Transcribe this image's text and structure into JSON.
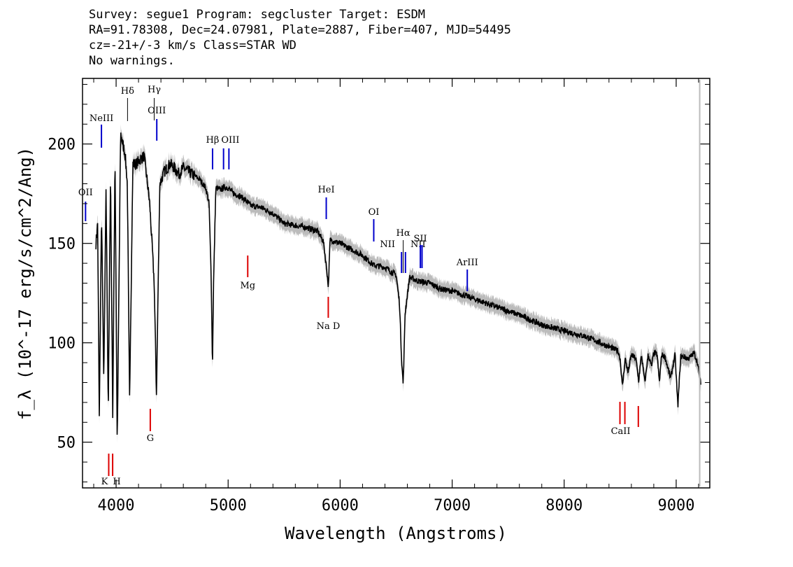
{
  "header": {
    "line1": "Survey: segue1 Program: segcluster Target: ESDM",
    "line2": "RA=91.78308, Dec=24.07981, Plate=2887, Fiber=407, MJD=54495",
    "line3": "cz=-21+/-3 km/s Class=STAR WD",
    "line4": "No warnings."
  },
  "chart_data": {
    "type": "line",
    "xlabel": "Wavelength (Angstroms)",
    "ylabel": "f_λ (10^-17 erg/s/cm^2/Ang)",
    "xlim": [
      3700,
      9300
    ],
    "ylim": [
      27,
      233
    ],
    "xticks": [
      4000,
      5000,
      6000,
      7000,
      8000,
      9000
    ],
    "yticks": [
      50,
      100,
      150,
      200
    ],
    "grid": false,
    "colors": {
      "spectrum": "#000000",
      "error": "#bbbbbb",
      "emission": "#0000cc",
      "absorption": "#dd0000"
    },
    "spectrum": {
      "x": [
        3820,
        3835,
        3850,
        3870,
        3890,
        3910,
        3930,
        3950,
        3970,
        3990,
        4010,
        4040,
        4060,
        4080,
        4100,
        4120,
        4150,
        4180,
        4210,
        4250,
        4280,
        4300,
        4320,
        4340,
        4360,
        4390,
        4430,
        4480,
        4520,
        4560,
        4600,
        4650,
        4700,
        4750,
        4800,
        4830,
        4850,
        4860,
        4870,
        4890,
        4930,
        4960,
        5000,
        5050,
        5100,
        5150,
        5200,
        5300,
        5400,
        5500,
        5600,
        5700,
        5800,
        5850,
        5880,
        5895,
        5910,
        5950,
        6000,
        6100,
        6200,
        6300,
        6400,
        6500,
        6530,
        6550,
        6563,
        6580,
        6620,
        6700,
        6800,
        6900,
        7000,
        7100,
        7200,
        7400,
        7600,
        7800,
        8000,
        8200,
        8400,
        8480,
        8500,
        8520,
        8545,
        8570,
        8600,
        8640,
        8665,
        8690,
        8720,
        8750,
        8780,
        8800,
        8830,
        8850,
        8870,
        8900,
        8950,
        8990,
        9015,
        9040,
        9070,
        9100,
        9130,
        9160,
        9190,
        9220
      ],
      "y": [
        150,
        160,
        62,
        165,
        80,
        178,
        66,
        186,
        63,
        195,
        48,
        205,
        200,
        195,
        180,
        72,
        190,
        190,
        192,
        194,
        180,
        170,
        150,
        130,
        74,
        180,
        186,
        190,
        188,
        185,
        188,
        186,
        184,
        182,
        178,
        170,
        130,
        87,
        130,
        178,
        177,
        178,
        178,
        175,
        174,
        172,
        169,
        168,
        165,
        160,
        159,
        158,
        156,
        151,
        137,
        128,
        152,
        151,
        150,
        147,
        144,
        139,
        138,
        134,
        120,
        90,
        79,
        115,
        133,
        131,
        130,
        127,
        126,
        124,
        122,
        118,
        114,
        109,
        106,
        103,
        98,
        96,
        92,
        78,
        92,
        85,
        94,
        92,
        81,
        94,
        80,
        94,
        88,
        95,
        94,
        80,
        94,
        93,
        82,
        94,
        68,
        93,
        93,
        92,
        93,
        95,
        90,
        79
      ]
    },
    "emission_lines": [
      {
        "name": "OII",
        "x": 3727
      },
      {
        "name": "NeIII",
        "x": 3869
      },
      {
        "name": "OIII",
        "x": 4363
      },
      {
        "name": "Hβ",
        "x": 4861
      },
      {
        "name": "OIII",
        "x": 4959
      },
      {
        "name": "OIII",
        "x": 5007
      },
      {
        "name": "HeI",
        "x": 5876
      },
      {
        "name": "OI",
        "x": 6300
      },
      {
        "name": "NII",
        "x": 6548
      },
      {
        "name": "NII",
        "x": 6583
      },
      {
        "name": "SII",
        "x": 6716
      },
      {
        "name": "SII",
        "x": 6731
      },
      {
        "name": "ArIII",
        "x": 7135
      }
    ],
    "balmer_lines": [
      {
        "name": "Hδ",
        "x": 4102
      },
      {
        "name": "Hγ",
        "x": 4340
      },
      {
        "name": "Hα",
        "x": 6563
      }
    ],
    "absorption_lines": [
      {
        "name": "K",
        "x": 3934
      },
      {
        "name": "H",
        "x": 3969
      },
      {
        "name": "G",
        "x": 4305
      },
      {
        "name": "Mg",
        "x": 5175
      },
      {
        "name": "Na D",
        "x": 5894
      },
      {
        "name": "CaII",
        "x": 8498
      },
      {
        "name": "CaII",
        "x": 8542
      },
      {
        "name": "CaII",
        "x": 8662
      }
    ]
  }
}
